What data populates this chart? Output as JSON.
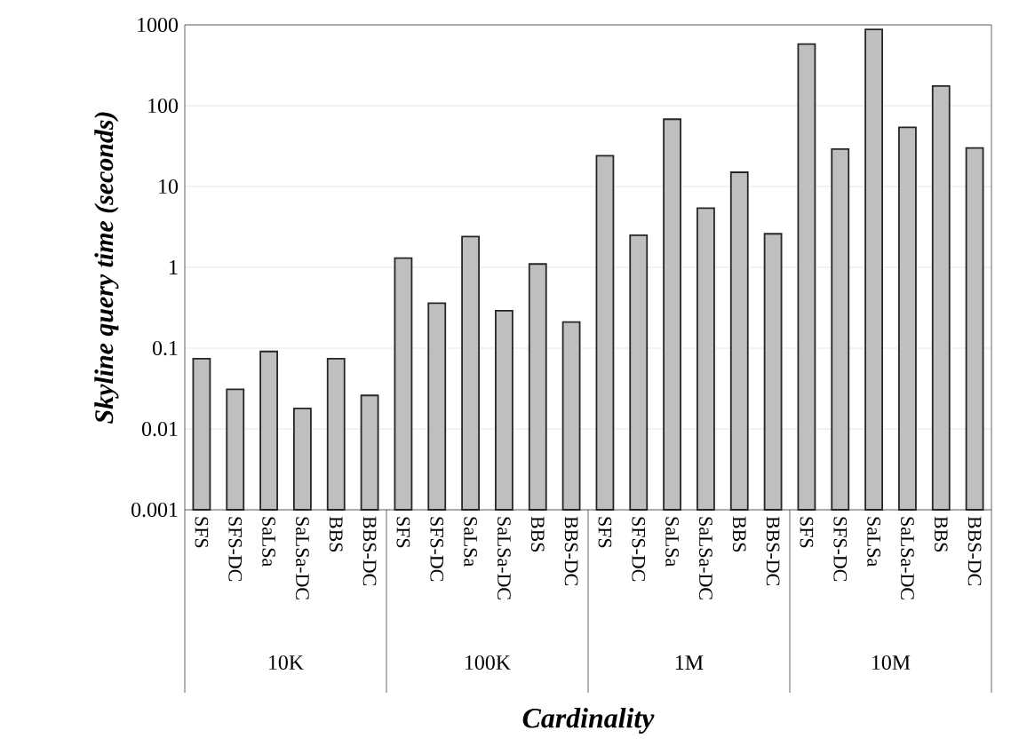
{
  "chart_data": {
    "type": "bar",
    "xlabel": "Cardinality",
    "ylabel": "Skyline query time (seconds)",
    "categories": [
      "SFS",
      "SFS-DC",
      "SaLSa",
      "SaLSa-DC",
      "BBS",
      "BBS-DC",
      "SFS",
      "SFS-DC",
      "SaLSa",
      "SaLSa-DC",
      "BBS",
      "BBS-DC",
      "SFS",
      "SFS-DC",
      "SaLSa",
      "SaLSa-DC",
      "BBS",
      "BBS-DC",
      "SFS",
      "SFS-DC",
      "SaLSa",
      "SaLSa-DC",
      "BBS",
      "BBS-DC"
    ],
    "values": [
      0.074,
      0.031,
      0.091,
      0.018,
      0.074,
      0.026,
      1.3,
      0.36,
      2.4,
      0.29,
      1.1,
      0.21,
      24,
      2.5,
      68,
      5.4,
      15,
      2.6,
      580,
      29,
      880,
      54,
      175,
      30
    ],
    "color": "#bfbfbf",
    "log": true,
    "grid": "y",
    "ylim": [
      0.001,
      1000
    ],
    "yticks": [
      0.001,
      0.01,
      0.1,
      1,
      10,
      100,
      1000
    ],
    "annotations": [
      "10K",
      "100K",
      "1M",
      "10M"
    ]
  }
}
